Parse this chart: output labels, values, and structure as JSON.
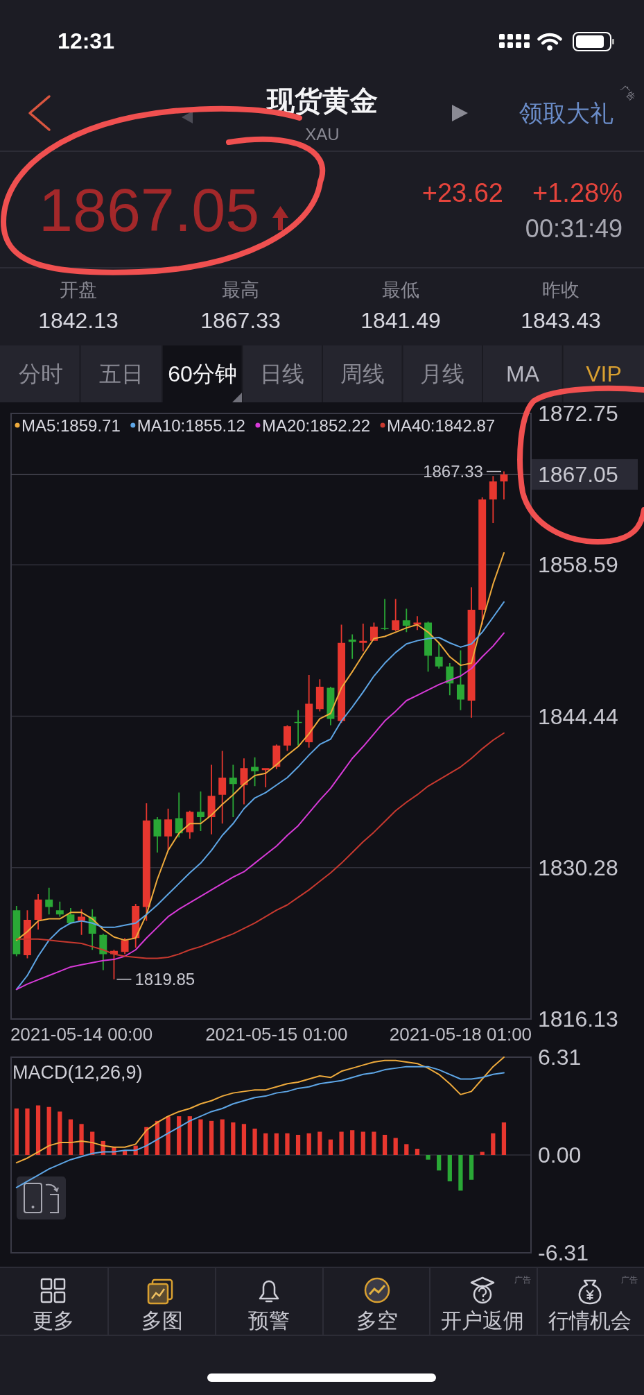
{
  "chart_data": [
    {
      "type": "other",
      "title": "现货黄金",
      "subtitle": "XAU",
      "annotations": [
        "12:31",
        "领取大礼",
        "广告",
        "1867.05",
        "+23.62",
        "+1.28%",
        "00:31:49",
        "开盘",
        "1842.13",
        "最高",
        "1867.33",
        "最低",
        "1841.49",
        "昨收",
        "1843.43",
        "分时",
        "五日",
        "60分钟",
        "日线",
        "周线",
        "月线",
        "MA",
        "VIP"
      ]
    },
    {
      "type": "candlestick",
      "categories": [
        null,
        null,
        null,
        null,
        null,
        null,
        "2021-05-14 00:00",
        null,
        null,
        null,
        null,
        null,
        null,
        null,
        null,
        null,
        null,
        null,
        null,
        null,
        null,
        null,
        null,
        null,
        "2021-05-15 01:00",
        null,
        null,
        null,
        null,
        null,
        null,
        null,
        null,
        null,
        null,
        null,
        null,
        null,
        null,
        null,
        null,
        "2021-05-18 01:00",
        null,
        null,
        null,
        null
      ],
      "ohlc": [
        [
          1826.3,
          1826.7,
          1822.0,
          1822.2
        ],
        [
          1822.1,
          1826.3,
          1821.8,
          1825.4
        ],
        [
          1825.4,
          1827.8,
          1824.5,
          1827.3
        ],
        [
          1827.3,
          1828.4,
          1825.9,
          1826.6
        ],
        [
          1826.3,
          1827.1,
          1825.7,
          1825.9
        ],
        [
          1825.9,
          1826.5,
          1825.0,
          1825.1
        ],
        [
          1825.3,
          1826.4,
          1824.0,
          1825.7
        ],
        [
          1825.7,
          1826.4,
          1822.6,
          1824.1
        ],
        [
          1824.0,
          1824.1,
          1820.7,
          1822.2
        ],
        [
          1822.2,
          1822.6,
          1819.85,
          1822.5
        ],
        [
          1822.4,
          1823.7,
          1822.2,
          1823.5
        ],
        [
          1823.7,
          1826.9,
          1822.8,
          1826.7
        ],
        [
          1826.6,
          1836.3,
          1825.3,
          1834.7
        ],
        [
          1834.8,
          1835.0,
          1831.7,
          1833.2
        ],
        [
          1833.2,
          1835.8,
          1831.9,
          1834.8
        ],
        [
          1834.9,
          1837.3,
          1833.1,
          1833.5
        ],
        [
          1833.6,
          1835.6,
          1833.0,
          1835.5
        ],
        [
          1835.5,
          1837.4,
          1833.7,
          1835.0
        ],
        [
          1835.0,
          1839.9,
          1833.4,
          1837.0
        ],
        [
          1837.1,
          1841.2,
          1834.4,
          1838.7
        ],
        [
          1838.7,
          1839.9,
          1835.0,
          1838.1
        ],
        [
          1838.0,
          1840.5,
          1836.2,
          1839.6
        ],
        [
          1839.7,
          1840.6,
          1837.9,
          1839.3
        ],
        [
          1839.4,
          1839.6,
          1837.8,
          1839.6
        ],
        [
          1839.7,
          1841.8,
          1839.5,
          1841.7
        ],
        [
          1841.7,
          1843.6,
          1841.2,
          1843.5
        ],
        [
          1843.9,
          1845.0,
          1841.7,
          1843.8
        ],
        [
          1842.0,
          1848.3,
          1841.5,
          1845.6
        ],
        [
          1845.1,
          1847.9,
          1844.9,
          1847.2
        ],
        [
          1847.1,
          1847.2,
          1843.6,
          1844.2
        ],
        [
          1844.0,
          1853.0,
          1843.8,
          1851.3
        ],
        [
          1851.6,
          1852.1,
          1849.8,
          1851.4
        ],
        [
          1851.3,
          1853.1,
          1850.5,
          1851.5
        ],
        [
          1851.5,
          1853.2,
          1851.5,
          1852.8
        ],
        [
          1852.7,
          1855.4,
          1852.5,
          1852.6
        ],
        [
          1852.5,
          1855.4,
          1852.4,
          1853.4
        ],
        [
          1853.4,
          1854.5,
          1852.3,
          1852.9
        ],
        [
          1853.0,
          1853.8,
          1852.5,
          1853.2
        ],
        [
          1853.2,
          1853.3,
          1848.6,
          1850.1
        ],
        [
          1850.0,
          1851.3,
          1848.9,
          1849.1
        ],
        [
          1849.1,
          1849.4,
          1846.4,
          1847.5
        ],
        [
          1847.4,
          1850.6,
          1845.0,
          1846.0
        ],
        [
          1845.9,
          1856.5,
          1844.3,
          1854.4
        ],
        [
          1854.4,
          1864.9,
          1853.0,
          1864.7
        ],
        [
          1864.7,
          1866.9,
          1862.5,
          1866.4
        ],
        [
          1866.4,
          1867.33,
          1864.7,
          1867.05
        ]
      ],
      "colors": [
        "#2aa836",
        "#e8372f",
        "#e8372f",
        "#2aa836",
        "#2aa836",
        "#2aa836",
        "#e8372f",
        "#2aa836",
        "#2aa836",
        "#e8372f",
        "#e8372f",
        "#e8372f",
        "#e8372f",
        "#2aa836",
        "#e8372f",
        "#2aa836",
        "#e8372f",
        "#2aa836",
        "#e8372f",
        "#e8372f",
        "#2aa836",
        "#e8372f",
        "#2aa836",
        "#e8372f",
        "#e8372f",
        "#e8372f",
        "#2aa836",
        "#e8372f",
        "#e8372f",
        "#2aa836",
        "#e8372f",
        "#2aa836",
        "#e8372f",
        "#e8372f",
        "#2aa836",
        "#e8372f",
        "#2aa836",
        "#e8372f",
        "#2aa836",
        "#2aa836",
        "#2aa836",
        "#2aa836",
        "#e8372f",
        "#e8372f",
        "#e8372f",
        "#e8372f"
      ],
      "series": [
        {
          "name": "MA5:1859.71",
          "type": "line",
          "color": "#eeaa3c",
          "values": [
            1823.5,
            1824.3,
            1825.3,
            1825.5,
            1825.5,
            1826.1,
            1826.1,
            1825.5,
            1824.5,
            1823.8,
            1823.5,
            1823.7,
            1825.9,
            1829.2,
            1831.9,
            1833.5,
            1834.4,
            1834.4,
            1835.2,
            1836.2,
            1837.1,
            1838.1,
            1838.9,
            1839.1,
            1839.9,
            1840.8,
            1841.6,
            1842.8,
            1844.2,
            1844.7,
            1847.1,
            1848.6,
            1850.2,
            1851.7,
            1851.9,
            1852.3,
            1852.7,
            1853.0,
            1852.3,
            1851.3,
            1850.0,
            1849.2,
            1849.4,
            1853.3,
            1856.8,
            1859.71
          ]
        },
        {
          "name": "MA10:1855.12",
          "type": "line",
          "color": "#5ea6e6",
          "values": [
            1818.9,
            1820.2,
            1822.0,
            1823.5,
            1824.5,
            1825.1,
            1825.3,
            1825.1,
            1824.7,
            1824.7,
            1824.9,
            1825.1,
            1825.9,
            1826.8,
            1827.8,
            1828.8,
            1829.8,
            1830.7,
            1831.9,
            1833.3,
            1834.4,
            1835.8,
            1836.8,
            1837.3,
            1838.0,
            1838.7,
            1839.7,
            1840.8,
            1841.8,
            1842.3,
            1844.0,
            1845.3,
            1846.7,
            1848.2,
            1849.4,
            1850.4,
            1851.2,
            1851.5,
            1851.7,
            1851.8,
            1851.3,
            1850.9,
            1851.2,
            1852.3,
            1853.7,
            1855.12
          ]
        },
        {
          "name": "MA20:1852.22",
          "type": "line",
          "color": "#d83ad8",
          "values": [
            1818.9,
            1819.4,
            1819.8,
            1820.2,
            1820.6,
            1821.0,
            1821.2,
            1821.4,
            1821.6,
            1821.7,
            1822.0,
            1822.6,
            1823.7,
            1824.7,
            1825.7,
            1826.4,
            1827.0,
            1827.6,
            1828.2,
            1828.8,
            1829.4,
            1829.9,
            1830.7,
            1831.5,
            1832.3,
            1833.3,
            1834.2,
            1835.4,
            1836.6,
            1837.7,
            1839.1,
            1840.5,
            1841.6,
            1842.8,
            1844.0,
            1844.9,
            1845.9,
            1846.4,
            1846.9,
            1847.4,
            1847.8,
            1848.2,
            1848.9,
            1850.0,
            1851.0,
            1852.22
          ]
        },
        {
          "name": "MA40:1842.87",
          "type": "line",
          "color": "#c8392f",
          "values": [
            1823.6,
            1823.6,
            1823.6,
            1823.5,
            1823.4,
            1823.3,
            1823.2,
            1822.9,
            1822.6,
            1822.2,
            1822.0,
            1821.9,
            1821.8,
            1821.8,
            1821.9,
            1822.2,
            1822.6,
            1822.9,
            1823.3,
            1823.7,
            1824.1,
            1824.6,
            1825.1,
            1825.7,
            1826.3,
            1826.8,
            1827.5,
            1828.2,
            1829.0,
            1829.8,
            1830.7,
            1831.7,
            1832.7,
            1833.6,
            1834.6,
            1835.6,
            1836.4,
            1837.1,
            1837.9,
            1838.5,
            1839.1,
            1839.7,
            1840.5,
            1841.4,
            1842.2,
            1842.87
          ]
        }
      ],
      "ylim": [
        1816.13,
        1872.75
      ],
      "yticks": [
        1816.13,
        1830.28,
        1844.44,
        1858.59,
        1872.75
      ],
      "grid": "y",
      "legend": "top left",
      "ref_lines": [
        {
          "axis": "y",
          "value": 1867.05,
          "label": "1867.05",
          "color": "#4a4a56"
        }
      ],
      "annotations": [
        {
          "text": "1867.33",
          "y": 1867.33
        },
        "1819.85"
      ]
    },
    {
      "type": "bar",
      "title": "MACD(12,26,9)",
      "categories": [
        null,
        null,
        null,
        null,
        null,
        null,
        null,
        null,
        null,
        null,
        null,
        null,
        null,
        null,
        null,
        null,
        null,
        null,
        null,
        null,
        null,
        null,
        null,
        null,
        null,
        null,
        null,
        null,
        null,
        null,
        null,
        null,
        null,
        null,
        null,
        null,
        null,
        null,
        null,
        null,
        null,
        null,
        null,
        null,
        null,
        null
      ],
      "series": [
        {
          "type": "bar",
          "colors": [
            "#e8372f",
            "#e8372f",
            "#e8372f",
            "#e8372f",
            "#e8372f",
            "#e8372f",
            "#e8372f",
            "#e8372f",
            "#e8372f",
            "#e8372f",
            "#e8372f",
            "#e8372f",
            "#e8372f",
            "#e8372f",
            "#e8372f",
            "#e8372f",
            "#e8372f",
            "#e8372f",
            "#e8372f",
            "#e8372f",
            "#e8372f",
            "#e8372f",
            "#e8372f",
            "#e8372f",
            "#e8372f",
            "#e8372f",
            "#e8372f",
            "#e8372f",
            "#e8372f",
            "#e8372f",
            "#e8372f",
            "#e8372f",
            "#e8372f",
            "#e8372f",
            "#e8372f",
            "#e8372f",
            "#e8372f",
            "#e8372f",
            "#2aa836",
            "#2aa836",
            "#2aa836",
            "#2aa836",
            "#2aa836",
            "#e8372f",
            "#e8372f",
            "#e8372f"
          ],
          "values": [
            3.0,
            3.0,
            3.2,
            3.1,
            2.8,
            2.3,
            2.0,
            1.5,
            0.9,
            0.5,
            0.3,
            0.6,
            1.8,
            2.2,
            2.5,
            2.5,
            2.5,
            2.3,
            2.2,
            2.3,
            2.1,
            2.0,
            1.7,
            1.4,
            1.4,
            1.4,
            1.3,
            1.4,
            1.5,
            1.0,
            1.5,
            1.6,
            1.5,
            1.5,
            1.3,
            1.1,
            0.7,
            0.4,
            -0.3,
            -1.0,
            -1.7,
            -2.3,
            -1.6,
            0.2,
            1.4,
            2.1
          ]
        },
        {
          "type": "line",
          "color": "#eeaa3c",
          "values": [
            -0.5,
            -0.2,
            0.2,
            0.6,
            0.8,
            0.8,
            0.9,
            0.8,
            0.6,
            0.5,
            0.5,
            0.7,
            1.6,
            2.1,
            2.5,
            2.8,
            3.0,
            3.3,
            3.5,
            3.8,
            4.0,
            4.1,
            4.2,
            4.2,
            4.4,
            4.6,
            4.7,
            4.9,
            5.1,
            5.0,
            5.4,
            5.6,
            5.8,
            6.0,
            6.1,
            6.1,
            6.0,
            5.9,
            5.6,
            5.2,
            4.6,
            3.9,
            4.1,
            4.9,
            5.7,
            6.31
          ]
        },
        {
          "type": "line",
          "color": "#5ea6e6",
          "values": [
            -2.1,
            -1.7,
            -1.3,
            -0.9,
            -0.6,
            -0.3,
            -0.1,
            0.1,
            0.2,
            0.2,
            0.3,
            0.3,
            0.6,
            1.0,
            1.4,
            1.8,
            2.2,
            2.5,
            2.8,
            3.0,
            3.3,
            3.5,
            3.7,
            3.8,
            4.0,
            4.1,
            4.3,
            4.4,
            4.6,
            4.7,
            4.8,
            5.0,
            5.2,
            5.3,
            5.5,
            5.6,
            5.7,
            5.7,
            5.7,
            5.5,
            5.2,
            4.9,
            4.9,
            5.0,
            5.2,
            5.3
          ]
        }
      ],
      "ylim": [
        -6.31,
        6.31
      ],
      "yticks": [
        -6.31,
        {
          "value": 0,
          "label": "0.00"
        },
        6.31
      ],
      "grid": "y",
      "tick_labels": "y"
    },
    {
      "type": "other",
      "annotations": [
        "更多",
        "多图",
        "预警",
        "多空",
        "开户返佣",
        "行情机会",
        "广告",
        "广告"
      ]
    }
  ]
}
